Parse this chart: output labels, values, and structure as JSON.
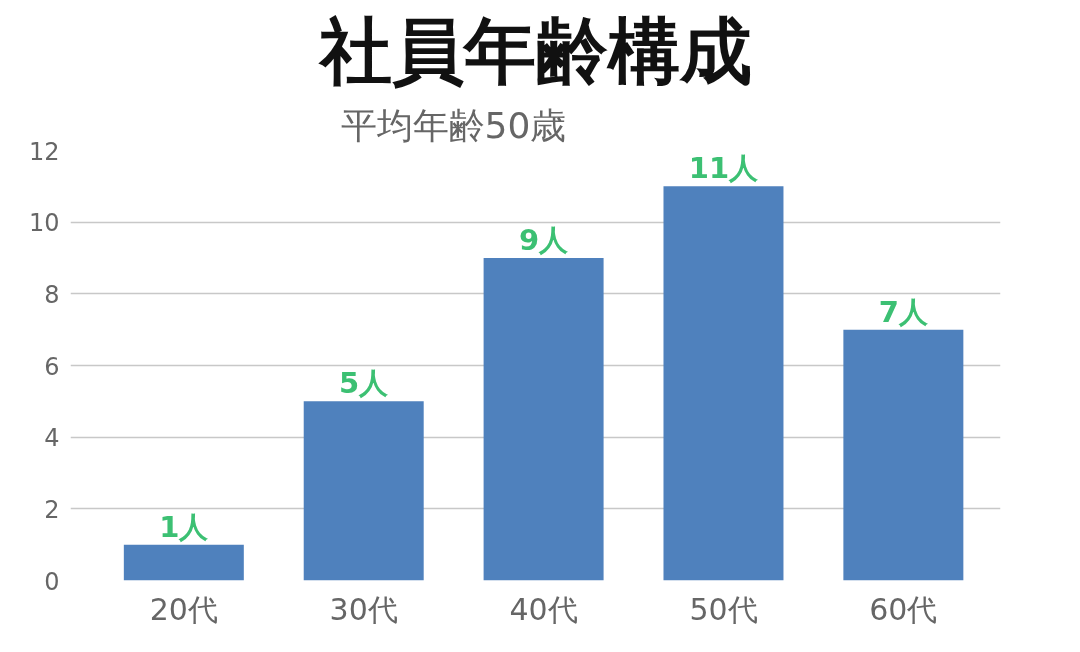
{
  "chart_data": {
    "type": "bar",
    "title": "社員年齢構成",
    "subtitle": "平均年齢50歳",
    "categories": [
      "20代",
      "30代",
      "40代",
      "50代",
      "60代"
    ],
    "values": [
      1,
      5,
      9,
      11,
      7
    ],
    "value_labels": [
      "1人",
      "5人",
      "9人",
      "11人",
      "7人"
    ],
    "color": "#4f81bd",
    "ylim": [
      0,
      12
    ],
    "yticks": [
      0,
      2,
      4,
      6,
      8,
      10,
      12
    ],
    "grid": "y",
    "legend": false
  }
}
